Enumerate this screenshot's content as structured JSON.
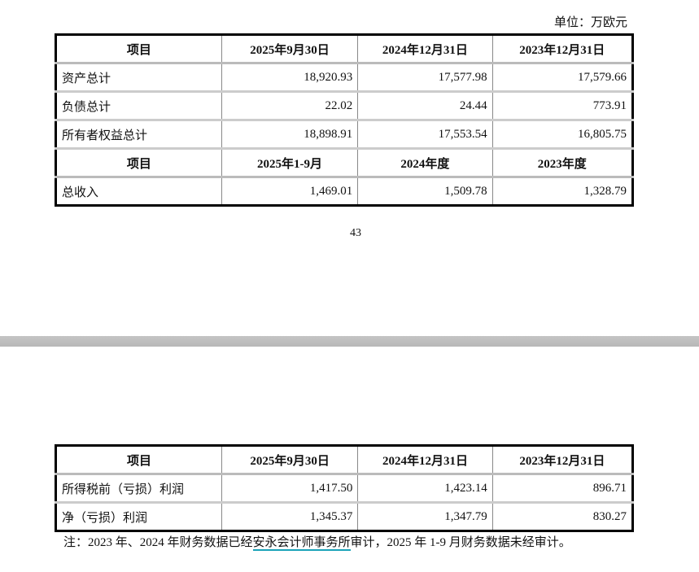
{
  "unit_label": "单位：万欧元",
  "page_number": "43",
  "table1": {
    "headers": [
      "项目",
      "2025年9月30日",
      "2024年12月31日",
      "2023年12月31日"
    ],
    "rows": [
      [
        "资产总计",
        "18,920.93",
        "17,577.98",
        "17,579.66"
      ],
      [
        "负债总计",
        "22.02",
        "24.44",
        "773.91"
      ],
      [
        "所有者权益总计",
        "18,898.91",
        "17,553.54",
        "16,805.75"
      ]
    ],
    "headers2": [
      "项目",
      "2025年1-9月",
      "2024年度",
      "2023年度"
    ],
    "rows2": [
      [
        "总收入",
        "1,469.01",
        "1,509.78",
        "1,328.79"
      ]
    ]
  },
  "table2": {
    "headers": [
      "项目",
      "2025年9月30日",
      "2024年12月31日",
      "2023年12月31日"
    ],
    "rows": [
      [
        "所得税前（亏损）利润",
        "1,417.50",
        "1,423.14",
        "896.71"
      ],
      [
        "净（亏损）利润",
        "1,345.37",
        "1,347.79",
        "830.27"
      ]
    ]
  },
  "note": {
    "before": "注：2023 年、2024 年财务数据已经",
    "link": "安永会计师事务所",
    "after": "审计，2025 年 1-9 月财务数据未经审计。"
  },
  "colors": {
    "link_underline": "#1aa3b8",
    "page_gap": "#bfbfbf"
  }
}
